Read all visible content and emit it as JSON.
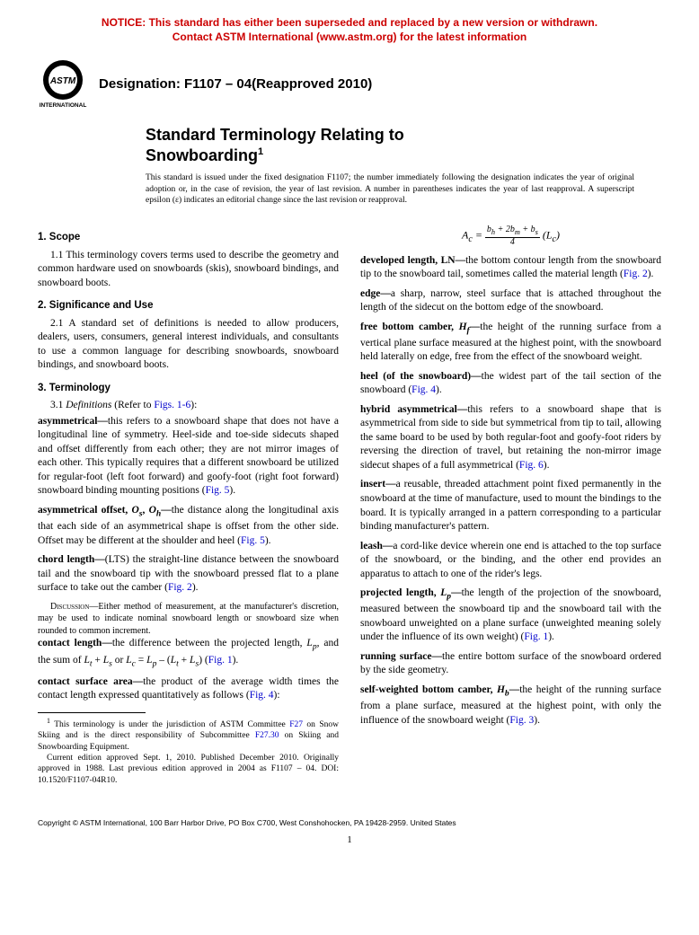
{
  "notice": {
    "line1": "NOTICE: This standard has either been superseded and replaced by a new version or withdrawn.",
    "line2": "Contact ASTM International (www.astm.org) for the latest information",
    "color": "#cc0000"
  },
  "logo": {
    "top_text": "ASTM",
    "bottom_text": "INTERNATIONAL"
  },
  "designation": "Designation: F1107 – 04(Reapproved 2010)",
  "title": {
    "line1": "Standard Terminology Relating to",
    "line2": "Snowboarding",
    "sup": "1"
  },
  "issuance": "This standard is issued under the fixed designation F1107; the number immediately following the designation indicates the year of original adoption or, in the case of revision, the year of last revision. A number in parentheses indicates the year of last reapproval. A superscript epsilon (ε) indicates an editorial change since the last revision or reapproval.",
  "sections": {
    "scope": {
      "head": "1. Scope",
      "p1": "1.1 This terminology covers terms used to describe the geometry and common hardware used on snowboards (skis), snowboard bindings, and snowboard boots."
    },
    "sig": {
      "head": "2. Significance and Use",
      "p1": "2.1 A standard set of definitions is needed to allow producers, dealers, users, consumers, general interest individuals, and consultants to use a common language for describing snowboards, snowboard bindings, and snowboard boots."
    },
    "term": {
      "head": "3. Terminology",
      "p1_prefix": "3.1 ",
      "p1_ital": "Definitions",
      "p1_suffix": " (Refer to ",
      "p1_fig": "Figs. 1-6",
      "p1_end": "):"
    }
  },
  "terms_left": [
    {
      "name": "asymmetrical—",
      "body": "this refers to a snowboard shape that does not have a longitudinal line of symmetry. Heel-side and toe-side sidecuts shaped and offset differently from each other; they are not mirror images of each other. This typically requires that a different snowboard be utilized for regular-foot (left foot forward) and goofy-foot (right foot forward) snowboard binding mounting positions (",
      "fig": "Fig. 5",
      "end": ")."
    },
    {
      "name": "asymmetrical offset, ",
      "ital": "O",
      "sub1": "s",
      "mid": ", ",
      "ital2": "O",
      "sub2": "h",
      "dash": "—",
      "body": "the distance along the longitudinal axis that each side of an asymmetrical shape is offset from the other side. Offset may be different at the shoulder and heel (",
      "fig": "Fig. 5",
      "end": ")."
    },
    {
      "name": "chord length—",
      "body": "(LTS) the straight-line distance between the snowboard tail and the snowboard tip with the snowboard pressed flat to a plane surface to take out the camber (",
      "fig": "Fig. 2",
      "end": ").",
      "discussion_label": "Discussion",
      "discussion": "—Either method of measurement, at the manufacturer's discretion, may be used to indicate nominal snowboard length or snowboard size when rounded to common increment."
    },
    {
      "name": "contact length—",
      "body_html": "the difference between the projected length, <i>L<sub>p</sub></i>, and the sum of <i>L<sub>t</sub></i> + <i>L<sub>s</sub></i> or <i>L<sub>c</sub></i> = <i>L<sub>p</sub></i> – (<i>L<sub>t</sub></i> + <i>L<sub>s</sub></i>) (",
      "fig": "Fig. 1",
      "end": ")."
    },
    {
      "name": "contact surface area—",
      "body": "the product of the average width times the contact length expressed quantitatively as follows (",
      "fig": "Fig. 4",
      "end": "):"
    }
  ],
  "formula": {
    "lhs": "A",
    "lhs_sub": "c",
    "eq": " = ",
    "num": "b<sub>h</sub> + 2b<sub>m</sub> + b<sub>s</sub>",
    "den": "4",
    "tail": " (L",
    "tail_sub": "c",
    "tail_end": ")"
  },
  "terms_right": [
    {
      "name": "developed length, LN—",
      "body": "the bottom contour length from the snowboard tip to the snowboard tail, sometimes called the material length (",
      "fig": "Fig. 2",
      "end": ")."
    },
    {
      "name": "edge—",
      "body": "a sharp, narrow, steel surface that is attached throughout the length of the sidecut on the bottom edge of the snowboard."
    },
    {
      "name": "free bottom camber, ",
      "ital": "H",
      "sub1": "f",
      "dash": "—",
      "body": "the height of the running surface from a vertical plane surface measured at the highest point, with the snowboard held laterally on edge, free from the effect of the snowboard weight."
    },
    {
      "name": "heel (of the snowboard)—",
      "body": "the widest part of the tail section of the snowboard (",
      "fig": "Fig. 4",
      "end": ")."
    },
    {
      "name": "hybrid asymmetrical—",
      "body": "this refers to a snowboard shape that is asymmetrical from side to side but symmetrical from tip to tail, allowing the same board to be used by both regular-foot and goofy-foot riders by reversing the direction of travel, but retaining the non-mirror image sidecut shapes of a full asymmetrical (",
      "fig": "Fig. 6",
      "end": ")."
    },
    {
      "name": "insert—",
      "body": "a reusable, threaded attachment point fixed permanently in the snowboard at the time of manufacture, used to mount the bindings to the board. It is typically arranged in a pattern corresponding to a particular binding manufacturer's pattern."
    },
    {
      "name": "leash—",
      "body": "a cord-like device wherein one end is attached to the top surface of the snowboard, or the binding, and the other end provides an apparatus to attach to one of the rider's legs."
    },
    {
      "name": "projected length, ",
      "ital": "L",
      "sub1": "p",
      "dash": "—",
      "body": "the length of the projection of the snowboard, measured between the snowboard tip and the snowboard tail with the snowboard unweighted on a plane surface (unweighted meaning solely under the influence of its own weight) (",
      "fig": "Fig. 1",
      "end": ")."
    },
    {
      "name": "running surface—",
      "body": "the entire bottom surface of the snowboard ordered by the side geometry."
    },
    {
      "name": "self-weighted bottom camber, ",
      "ital": "H",
      "sub1": "b",
      "dash": "—",
      "body": "the height of the running surface from a plane surface, measured at the highest point, with only the influence of the snowboard weight (",
      "fig": "Fig. 3",
      "end": ")."
    }
  ],
  "footnote": {
    "sup": "1",
    "t1": " This terminology is under the jurisdiction of ASTM Committee ",
    "c1": "F27",
    "t2": " on Snow Skiing and is the direct responsibility of Subcommittee ",
    "c2": "F27.30",
    "t3": " on Skiing and Snowboarding Equipment.",
    "p2": "Current edition approved Sept. 1, 2010. Published December 2010. Originally approved in 1988. Last previous edition approved in 2004 as F1107 – 04. DOI: 10.1520/F1107-04R10."
  },
  "copyright": "Copyright © ASTM International, 100 Barr Harbor Drive, PO Box C700, West Conshohocken, PA 19428-2959. United States",
  "pagenum": "1",
  "colors": {
    "link": "#0000cc",
    "notice": "#cc0000",
    "text": "#000000",
    "bg": "#ffffff"
  },
  "fonts": {
    "body": "Times New Roman",
    "heading": "Arial",
    "body_size_pt": 11.5,
    "notice_size_pt": 12,
    "title_size_pt": 18,
    "footnote_size_pt": 9.5
  }
}
